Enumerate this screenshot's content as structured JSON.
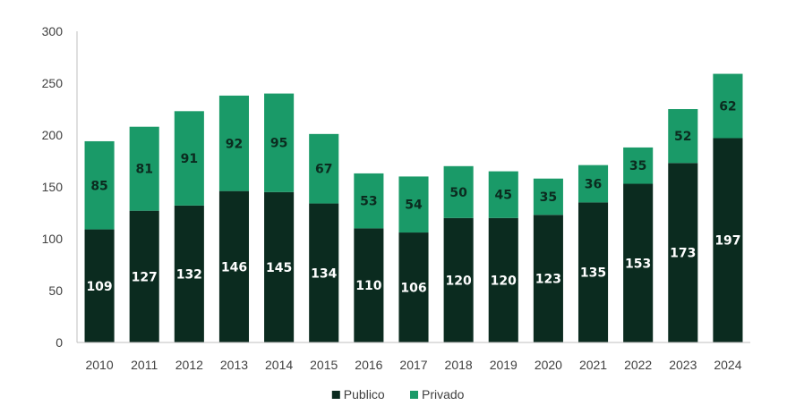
{
  "chart_data": {
    "type": "bar",
    "stacked": true,
    "categories": [
      "2010",
      "2011",
      "2012",
      "2013",
      "2014",
      "2015",
      "2016",
      "2017",
      "2018",
      "2019",
      "2020",
      "2021",
      "2022",
      "2023",
      "2024"
    ],
    "series": [
      {
        "name": "Publico",
        "color": "#0b2b1f",
        "label_color": "#ffffff",
        "values": [
          109,
          127,
          132,
          146,
          145,
          134,
          110,
          106,
          120,
          120,
          123,
          135,
          153,
          173,
          197
        ]
      },
      {
        "name": "Privado",
        "color": "#1a9a68",
        "label_color": "#0b2b1f",
        "values": [
          85,
          81,
          91,
          92,
          95,
          67,
          53,
          54,
          50,
          45,
          35,
          36,
          35,
          52,
          62
        ]
      }
    ],
    "title": "",
    "xlabel": "",
    "ylabel": "",
    "ylim": [
      0,
      300
    ],
    "yticks": [
      0,
      50,
      100,
      150,
      200,
      250,
      300
    ],
    "grid": false,
    "legend_position": "bottom-center",
    "axis_color": "#bfbfbf"
  }
}
